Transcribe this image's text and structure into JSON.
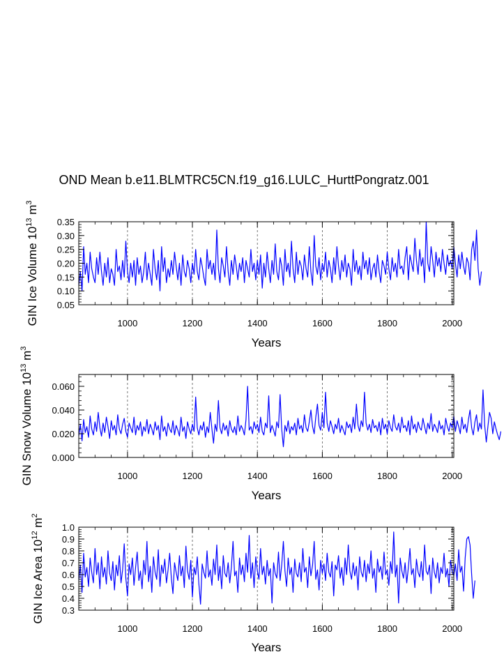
{
  "figure": {
    "title": "OND Mean b.e11.BLMTRC5CN.f19_g16.LULC_HurttPongratz.001",
    "line_color": "#0000ff"
  },
  "chart_data": [
    {
      "type": "line",
      "title": "OND Mean b.e11.BLMTRC5CN.f19_g16.LULC_HurttPongratz.001",
      "xlabel": "Years",
      "ylabel": {
        "name": "GIN Ice Volume",
        "base": "10",
        "exp": "13",
        "unit": "m",
        "unit_exp": "3"
      },
      "xlim": [
        850,
        2005
      ],
      "ylim": [
        0.05,
        0.35
      ],
      "x_ticks": [
        1000,
        1200,
        1400,
        1600,
        1800,
        2000
      ],
      "x_tick_labels": [
        "1000",
        "1200",
        "1400",
        "1600",
        "1800",
        "2000"
      ],
      "y_ticks": [
        0.05,
        0.1,
        0.15,
        0.2,
        0.25,
        0.3,
        0.35
      ],
      "y_tick_labels": [
        "0.05",
        "0.10",
        "0.15",
        "0.20",
        "0.25",
        "0.30",
        "0.35"
      ],
      "grid": "dashed verticals at major x ticks",
      "series": [
        {
          "name": "GIN Ice Volume",
          "x_start": 850,
          "x_end": 2005,
          "step": 5,
          "values": [
            0.12,
            0.17,
            0.1,
            0.26,
            0.16,
            0.2,
            0.13,
            0.24,
            0.18,
            0.15,
            0.13,
            0.22,
            0.16,
            0.24,
            0.17,
            0.12,
            0.2,
            0.15,
            0.22,
            0.13,
            0.18,
            0.16,
            0.12,
            0.25,
            0.17,
            0.19,
            0.14,
            0.21,
            0.15,
            0.28,
            0.17,
            0.13,
            0.2,
            0.15,
            0.21,
            0.12,
            0.22,
            0.16,
            0.19,
            0.13,
            0.17,
            0.24,
            0.14,
            0.2,
            0.16,
            0.12,
            0.25,
            0.18,
            0.14,
            0.21,
            0.1,
            0.26,
            0.17,
            0.22,
            0.13,
            0.18,
            0.15,
            0.21,
            0.16,
            0.24,
            0.19,
            0.14,
            0.2,
            0.12,
            0.23,
            0.17,
            0.15,
            0.21,
            0.18,
            0.13,
            0.2,
            0.16,
            0.25,
            0.17,
            0.14,
            0.22,
            0.19,
            0.15,
            0.12,
            0.25,
            0.18,
            0.21,
            0.16,
            0.2,
            0.14,
            0.32,
            0.18,
            0.13,
            0.22,
            0.19,
            0.15,
            0.26,
            0.17,
            0.12,
            0.21,
            0.16,
            0.23,
            0.19,
            0.14,
            0.2,
            0.17,
            0.22,
            0.13,
            0.21,
            0.18,
            0.15,
            0.25,
            0.17,
            0.2,
            0.14,
            0.21,
            0.16,
            0.23,
            0.11,
            0.2,
            0.15,
            0.24,
            0.18,
            0.13,
            0.21,
            0.16,
            0.27,
            0.17,
            0.14,
            0.22,
            0.19,
            0.12,
            0.25,
            0.17,
            0.2,
            0.15,
            0.28,
            0.18,
            0.13,
            0.24,
            0.16,
            0.21,
            0.19,
            0.14,
            0.23,
            0.18,
            0.15,
            0.26,
            0.17,
            0.12,
            0.3,
            0.19,
            0.16,
            0.22,
            0.14,
            0.2,
            0.17,
            0.24,
            0.15,
            0.21,
            0.18,
            0.13,
            0.22,
            0.16,
            0.26,
            0.19,
            0.14,
            0.21,
            0.17,
            0.23,
            0.15,
            0.2,
            0.18,
            0.12,
            0.25,
            0.17,
            0.21,
            0.16,
            0.19,
            0.14,
            0.24,
            0.18,
            0.21,
            0.16,
            0.22,
            0.14,
            0.18,
            0.2,
            0.15,
            0.23,
            0.17,
            0.13,
            0.21,
            0.19,
            0.16,
            0.24,
            0.18,
            0.14,
            0.22,
            0.17,
            0.2,
            0.15,
            0.25,
            0.18,
            0.19,
            0.16,
            0.22,
            0.26,
            0.14,
            0.23,
            0.2,
            0.17,
            0.29,
            0.21,
            0.16,
            0.25,
            0.19,
            0.22,
            0.13,
            0.35,
            0.2,
            0.17,
            0.26,
            0.21,
            0.15,
            0.24,
            0.19,
            0.22,
            0.17,
            0.25,
            0.2,
            0.16,
            0.23,
            0.19,
            0.21,
            0.18,
            0.26,
            0.2,
            0.15,
            0.23,
            0.18,
            0.24,
            0.19,
            0.16,
            0.22,
            0.2,
            0.14,
            0.25,
            0.28,
            0.21,
            0.32,
            0.18,
            0.12,
            0.17
          ]
        }
      ]
    },
    {
      "type": "line",
      "xlabel": "Years",
      "ylabel": {
        "name": "GIN Snow Volume",
        "base": "10",
        "exp": "13",
        "unit": "m",
        "unit_exp": "3"
      },
      "xlim": [
        850,
        2005
      ],
      "ylim": [
        0.0,
        0.07
      ],
      "x_ticks": [
        1000,
        1200,
        1400,
        1600,
        1800,
        2000
      ],
      "x_tick_labels": [
        "1000",
        "1200",
        "1400",
        "1600",
        "1800",
        "2000"
      ],
      "y_ticks": [
        0.0,
        0.02,
        0.04,
        0.06
      ],
      "y_tick_labels": [
        "0.000",
        "0.020",
        "0.040",
        "0.060"
      ],
      "grid": "dashed verticals at major x ticks",
      "series": [
        {
          "name": "GIN Snow Volume",
          "x_start": 850,
          "x_end": 2005,
          "step": 5,
          "values": [
            0.018,
            0.028,
            0.014,
            0.032,
            0.021,
            0.026,
            0.017,
            0.035,
            0.024,
            0.019,
            0.03,
            0.022,
            0.038,
            0.025,
            0.018,
            0.029,
            0.021,
            0.034,
            0.026,
            0.016,
            0.031,
            0.023,
            0.027,
            0.019,
            0.036,
            0.024,
            0.02,
            0.028,
            0.033,
            0.022,
            0.017,
            0.029,
            0.025,
            0.021,
            0.034,
            0.019,
            0.027,
            0.023,
            0.03,
            0.018,
            0.026,
            0.022,
            0.032,
            0.02,
            0.028,
            0.024,
            0.019,
            0.03,
            0.023,
            0.027,
            0.015,
            0.035,
            0.022,
            0.026,
            0.018,
            0.029,
            0.024,
            0.021,
            0.031,
            0.019,
            0.027,
            0.023,
            0.018,
            0.034,
            0.022,
            0.026,
            0.016,
            0.03,
            0.024,
            0.02,
            0.028,
            0.022,
            0.051,
            0.025,
            0.019,
            0.027,
            0.023,
            0.03,
            0.017,
            0.026,
            0.021,
            0.038,
            0.024,
            0.012,
            0.028,
            0.022,
            0.048,
            0.025,
            0.02,
            0.029,
            0.023,
            0.027,
            0.018,
            0.031,
            0.024,
            0.021,
            0.026,
            0.019,
            0.035,
            0.022,
            0.027,
            0.024,
            0.019,
            0.032,
            0.06,
            0.023,
            0.026,
            0.02,
            0.03,
            0.024,
            0.028,
            0.021,
            0.034,
            0.022,
            0.019,
            0.029,
            0.025,
            0.052,
            0.021,
            0.027,
            0.023,
            0.018,
            0.03,
            0.025,
            0.053,
            0.024,
            0.009,
            0.027,
            0.022,
            0.031,
            0.02,
            0.026,
            0.023,
            0.029,
            0.019,
            0.033,
            0.024,
            0.027,
            0.021,
            0.036,
            0.025,
            0.022,
            0.03,
            0.04,
            0.026,
            0.02,
            0.034,
            0.045,
            0.027,
            0.023,
            0.038,
            0.025,
            0.055,
            0.029,
            0.022,
            0.031,
            0.026,
            0.02,
            0.028,
            0.024,
            0.033,
            0.021,
            0.027,
            0.023,
            0.019,
            0.03,
            0.025,
            0.028,
            0.021,
            0.034,
            0.024,
            0.045,
            0.027,
            0.022,
            0.031,
            0.026,
            0.055,
            0.029,
            0.023,
            0.028,
            0.021,
            0.032,
            0.025,
            0.027,
            0.022,
            0.03,
            0.019,
            0.033,
            0.024,
            0.028,
            0.02,
            0.031,
            0.025,
            0.022,
            0.036,
            0.026,
            0.023,
            0.029,
            0.021,
            0.034,
            0.025,
            0.027,
            0.022,
            0.031,
            0.019,
            0.035,
            0.024,
            0.028,
            0.021,
            0.03,
            0.025,
            0.023,
            0.033,
            0.026,
            0.02,
            0.029,
            0.024,
            0.037,
            0.022,
            0.028,
            0.025,
            0.021,
            0.031,
            0.024,
            0.027,
            0.019,
            0.033,
            0.026,
            0.022,
            0.029,
            0.025,
            0.035,
            0.022,
            0.031,
            0.026,
            0.02,
            0.034,
            0.024,
            0.028,
            0.021,
            0.032,
            0.04,
            0.025,
            0.019,
            0.03,
            0.036,
            0.022,
            0.029,
            0.024,
            0.057,
            0.027,
            0.013,
            0.026,
            0.038,
            0.033,
            0.02,
            0.03,
            0.024,
            0.019,
            0.015,
            0.022
          ]
        }
      ]
    },
    {
      "type": "line",
      "xlabel": "Years",
      "ylabel": {
        "name": "GIN Ice Area",
        "base": "10",
        "exp": "12",
        "unit": "m",
        "unit_exp": "2"
      },
      "xlim": [
        850,
        2005
      ],
      "ylim": [
        0.3,
        1.0
      ],
      "x_ticks": [
        1000,
        1200,
        1400,
        1600,
        1800,
        2000
      ],
      "x_tick_labels": [
        "1000",
        "1200",
        "1400",
        "1600",
        "1800",
        "2000"
      ],
      "y_ticks": [
        0.3,
        0.4,
        0.5,
        0.6,
        0.7,
        0.8,
        0.9,
        1.0
      ],
      "y_tick_labels": [
        "0.3",
        "0.4",
        "0.5",
        "0.6",
        "0.7",
        "0.8",
        "0.9",
        "1.0"
      ],
      "grid": "dashed verticals at major x ticks",
      "series": [
        {
          "name": "GIN Ice Area",
          "x_start": 850,
          "x_end": 2005,
          "step": 5,
          "values": [
            0.55,
            0.68,
            0.45,
            0.78,
            0.58,
            0.66,
            0.5,
            0.74,
            0.62,
            0.53,
            0.82,
            0.6,
            0.7,
            0.48,
            0.75,
            0.58,
            0.66,
            0.52,
            0.8,
            0.61,
            0.55,
            0.71,
            0.47,
            0.68,
            0.59,
            0.76,
            0.53,
            0.64,
            0.86,
            0.57,
            0.42,
            0.69,
            0.6,
            0.74,
            0.51,
            0.66,
            0.79,
            0.55,
            0.63,
            0.48,
            0.72,
            0.6,
            0.88,
            0.54,
            0.67,
            0.45,
            0.75,
            0.62,
            0.56,
            0.81,
            0.5,
            0.68,
            0.61,
            0.73,
            0.53,
            0.64,
            0.78,
            0.57,
            0.44,
            0.7,
            0.62,
            0.55,
            0.76,
            0.59,
            0.67,
            0.49,
            0.84,
            0.63,
            0.56,
            0.72,
            0.41,
            0.66,
            0.6,
            0.75,
            0.52,
            0.35,
            0.69,
            0.62,
            0.57,
            0.8,
            0.58,
            0.64,
            0.51,
            0.73,
            0.6,
            0.85,
            0.55,
            0.67,
            0.48,
            0.76,
            0.61,
            0.58,
            0.7,
            0.53,
            0.66,
            0.88,
            0.59,
            0.63,
            0.45,
            0.74,
            0.6,
            0.68,
            0.54,
            0.78,
            0.62,
            0.93,
            0.57,
            0.7,
            0.49,
            0.75,
            0.63,
            0.56,
            0.82,
            0.6,
            0.67,
            0.52,
            0.72,
            0.59,
            0.65,
            0.36,
            0.7,
            0.61,
            0.57,
            0.79,
            0.55,
            0.68,
            0.88,
            0.63,
            0.5,
            0.74,
            0.6,
            0.66,
            0.45,
            0.73,
            0.61,
            0.58,
            0.7,
            0.54,
            0.82,
            0.62,
            0.66,
            0.49,
            0.75,
            0.59,
            0.68,
            0.88,
            0.56,
            0.64,
            0.47,
            0.72,
            0.61,
            0.69,
            0.55,
            0.78,
            0.62,
            0.58,
            0.71,
            0.42,
            0.68,
            0.64,
            0.76,
            0.57,
            0.66,
            0.51,
            0.74,
            0.6,
            0.85,
            0.63,
            0.56,
            0.7,
            0.59,
            0.67,
            0.47,
            0.75,
            0.62,
            0.58,
            0.72,
            0.54,
            0.69,
            0.61,
            0.8,
            0.57,
            0.65,
            0.45,
            0.73,
            0.62,
            0.67,
            0.56,
            0.79,
            0.6,
            0.64,
            0.51,
            0.71,
            0.61,
            0.96,
            0.58,
            0.68,
            0.36,
            0.74,
            0.63,
            0.57,
            0.7,
            0.53,
            0.66,
            0.82,
            0.6,
            0.65,
            0.49,
            0.73,
            0.62,
            0.58,
            0.71,
            0.55,
            0.85,
            0.63,
            0.6,
            0.68,
            0.44,
            0.74,
            0.62,
            0.57,
            0.7,
            0.53,
            0.66,
            0.61,
            0.78,
            0.58,
            0.65,
            0.5,
            0.72,
            0.63,
            0.59,
            0.69,
            0.55,
            0.81,
            0.62,
            0.67,
            0.46,
            0.74,
            0.9,
            0.92,
            0.85,
            0.6,
            0.4,
            0.55
          ]
        }
      ]
    }
  ]
}
